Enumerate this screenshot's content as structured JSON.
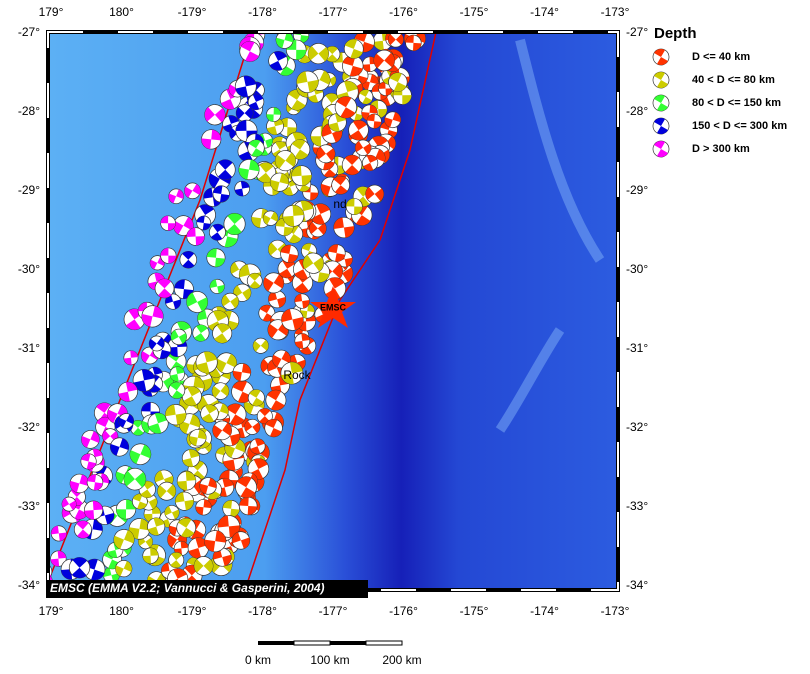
{
  "map": {
    "lon_labels": [
      "179°",
      "180°",
      "-179°",
      "-178°",
      "-177°",
      "-176°",
      "-175°",
      "-174°",
      "-173°"
    ],
    "lat_labels": [
      "-27°",
      "-28°",
      "-29°",
      "-30°",
      "-31°",
      "-32°",
      "-33°",
      "-34°"
    ],
    "legend": {
      "title": "Depth",
      "entries": [
        {
          "label": "D <= 40 km",
          "color": "#ff3300"
        },
        {
          "label": "40 < D <= 80 km",
          "color": "#cccc00"
        },
        {
          "label": "80 < D <= 150 km",
          "color": "#33ff33"
        },
        {
          "label": "150 < D <= 300 km",
          "color": "#0000dd"
        },
        {
          "label": "D > 300 km",
          "color": "#ff00ff"
        }
      ]
    },
    "credit": "EMSC (EMMA V2.2; Vannucci & Gasperini, 2004)",
    "scale_bar": [
      "0 km",
      "100 km",
      "200 km"
    ],
    "place_labels": [
      "EMSC",
      "nd",
      "Rock"
    ]
  }
}
